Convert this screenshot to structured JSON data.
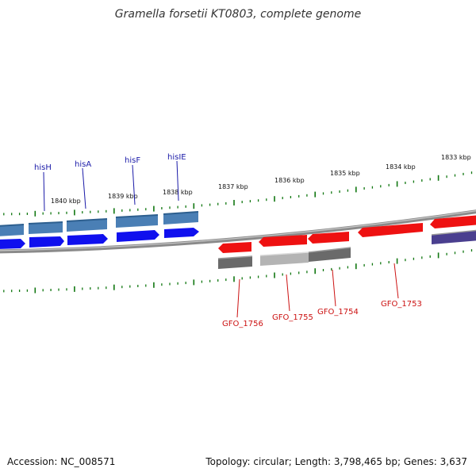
{
  "title": "Gramella forsetii KT0803, complete genome",
  "footer": {
    "accession": "Accession: NC_008571",
    "summary": "Topology: circular; Length: 3,798,465 bp; Genes: 3,637"
  },
  "colors": {
    "backbone": "#8a8a8a",
    "tick": "#117711",
    "forward_gene_label": "#1a1aa8",
    "reverse_gene_label": "#cc1111",
    "steelblue_feature": "#4a7fb5",
    "blue_feature": "#1010ee",
    "red_feature": "#ee1111",
    "gray_feature": "#6a6a6a",
    "lightgray_feature": "#b4b4b4",
    "navy_feature": "#4a3f8f"
  },
  "kbp_labels": [
    "1840 kbp",
    "1839 kbp",
    "1838 kbp",
    "1837 kbp",
    "1836 kbp",
    "1835 kbp",
    "1834 kbp",
    "1833 kbp"
  ],
  "forward_genes": [
    "hisH",
    "hisA",
    "hisF",
    "hisIE"
  ],
  "reverse_genes": [
    "GFO_1756",
    "GFO_1755",
    "GFO_1754",
    "GFO_1753"
  ]
}
